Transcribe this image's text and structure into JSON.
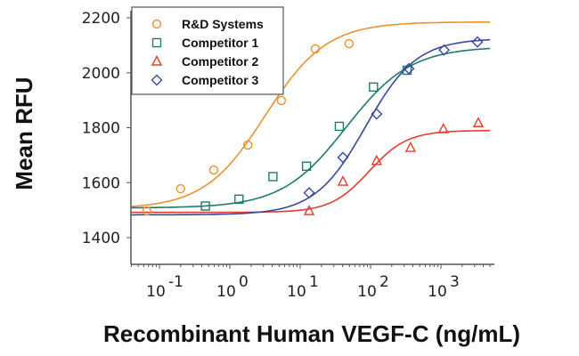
{
  "chart_data": {
    "type": "scatter",
    "title": "",
    "xlabel": "Recombinant Human VEGF-C (ng/mL)",
    "ylabel": "Mean RFU",
    "xscale": "log",
    "xlim": [
      0.04,
      5000
    ],
    "ylim": [
      1290,
      2220
    ],
    "grid": false,
    "legend_position": "top-left",
    "x_ticks": [
      {
        "value": 0.1,
        "base": "10",
        "exp": "-1"
      },
      {
        "value": 1,
        "base": "10",
        "exp": "0"
      },
      {
        "value": 10,
        "base": "10",
        "exp": "1"
      },
      {
        "value": 100,
        "base": "10",
        "exp": "2"
      },
      {
        "value": 1000,
        "base": "10",
        "exp": "3"
      }
    ],
    "y_ticks": [
      1400,
      1600,
      1800,
      2000,
      2200
    ],
    "series": [
      {
        "name": "R&D Systems",
        "marker": "circle",
        "color": "#F0902A",
        "x": [
          0.066,
          0.2,
          0.59,
          1.8,
          5.4,
          16.4,
          49.5
        ],
        "y": [
          1497,
          1578,
          1646,
          1737,
          1899,
          2087,
          2106
        ],
        "fit": {
          "bottom": 1505,
          "top": 2185,
          "ec50": 3.2,
          "hill": 1.0
        }
      },
      {
        "name": "Competitor 1",
        "marker": "square",
        "color": "#1E7A6A",
        "x": [
          0.45,
          1.35,
          4.1,
          12.3,
          36,
          110,
          330
        ],
        "y": [
          1515,
          1540,
          1622,
          1660,
          1805,
          1948,
          2009
        ],
        "fit": {
          "bottom": 1508,
          "top": 2095,
          "ec50": 45,
          "hill": 0.95
        }
      },
      {
        "name": "Competitor 2",
        "marker": "triangle",
        "color": "#E53A2E",
        "x": [
          13.4,
          40.5,
          122,
          370,
          1085,
          3400
        ],
        "y": [
          1497,
          1604,
          1679,
          1727,
          1795,
          1817
        ],
        "fit": {
          "bottom": 1492,
          "top": 1790,
          "ec50": 95,
          "hill": 1.6
        }
      },
      {
        "name": "Competitor 3",
        "marker": "diamond",
        "color": "#3848A0",
        "x": [
          13.4,
          40.5,
          122,
          350,
          1110,
          3300
        ],
        "y": [
          1563,
          1692,
          1850,
          2015,
          2083,
          2112
        ],
        "fit": {
          "bottom": 1483,
          "top": 2125,
          "ec50": 85,
          "hill": 1.2
        }
      }
    ]
  }
}
